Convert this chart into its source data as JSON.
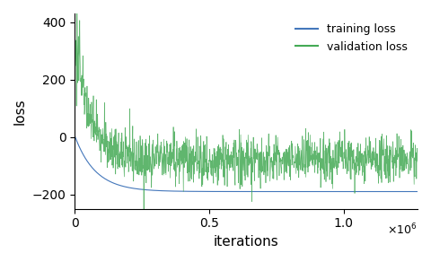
{
  "title": "",
  "xlabel": "iterations",
  "ylabel": "loss",
  "xlim": [
    0,
    1275000.0
  ],
  "ylim": [
    -250,
    430
  ],
  "yticks": [
    -200,
    0,
    200,
    400
  ],
  "xticks": [
    0,
    500000,
    1000000
  ],
  "xticklabels": [
    "0",
    "0.5",
    "1.0"
  ],
  "x_scale_label": "$\\times10^{6}$",
  "training_color": "#4477BB",
  "validation_color": "#44AA55",
  "legend_labels": [
    "training loss",
    "validation loss"
  ],
  "n_points": 1300,
  "total_iterations": 1275000,
  "train_start": 5.0,
  "train_end": -190.0,
  "val_start": 400.0,
  "val_plateau": -80.0,
  "val_noise_scale": 35.0,
  "val_noise_decay": 0.3,
  "figsize": [
    4.8,
    2.92
  ],
  "dpi": 100
}
